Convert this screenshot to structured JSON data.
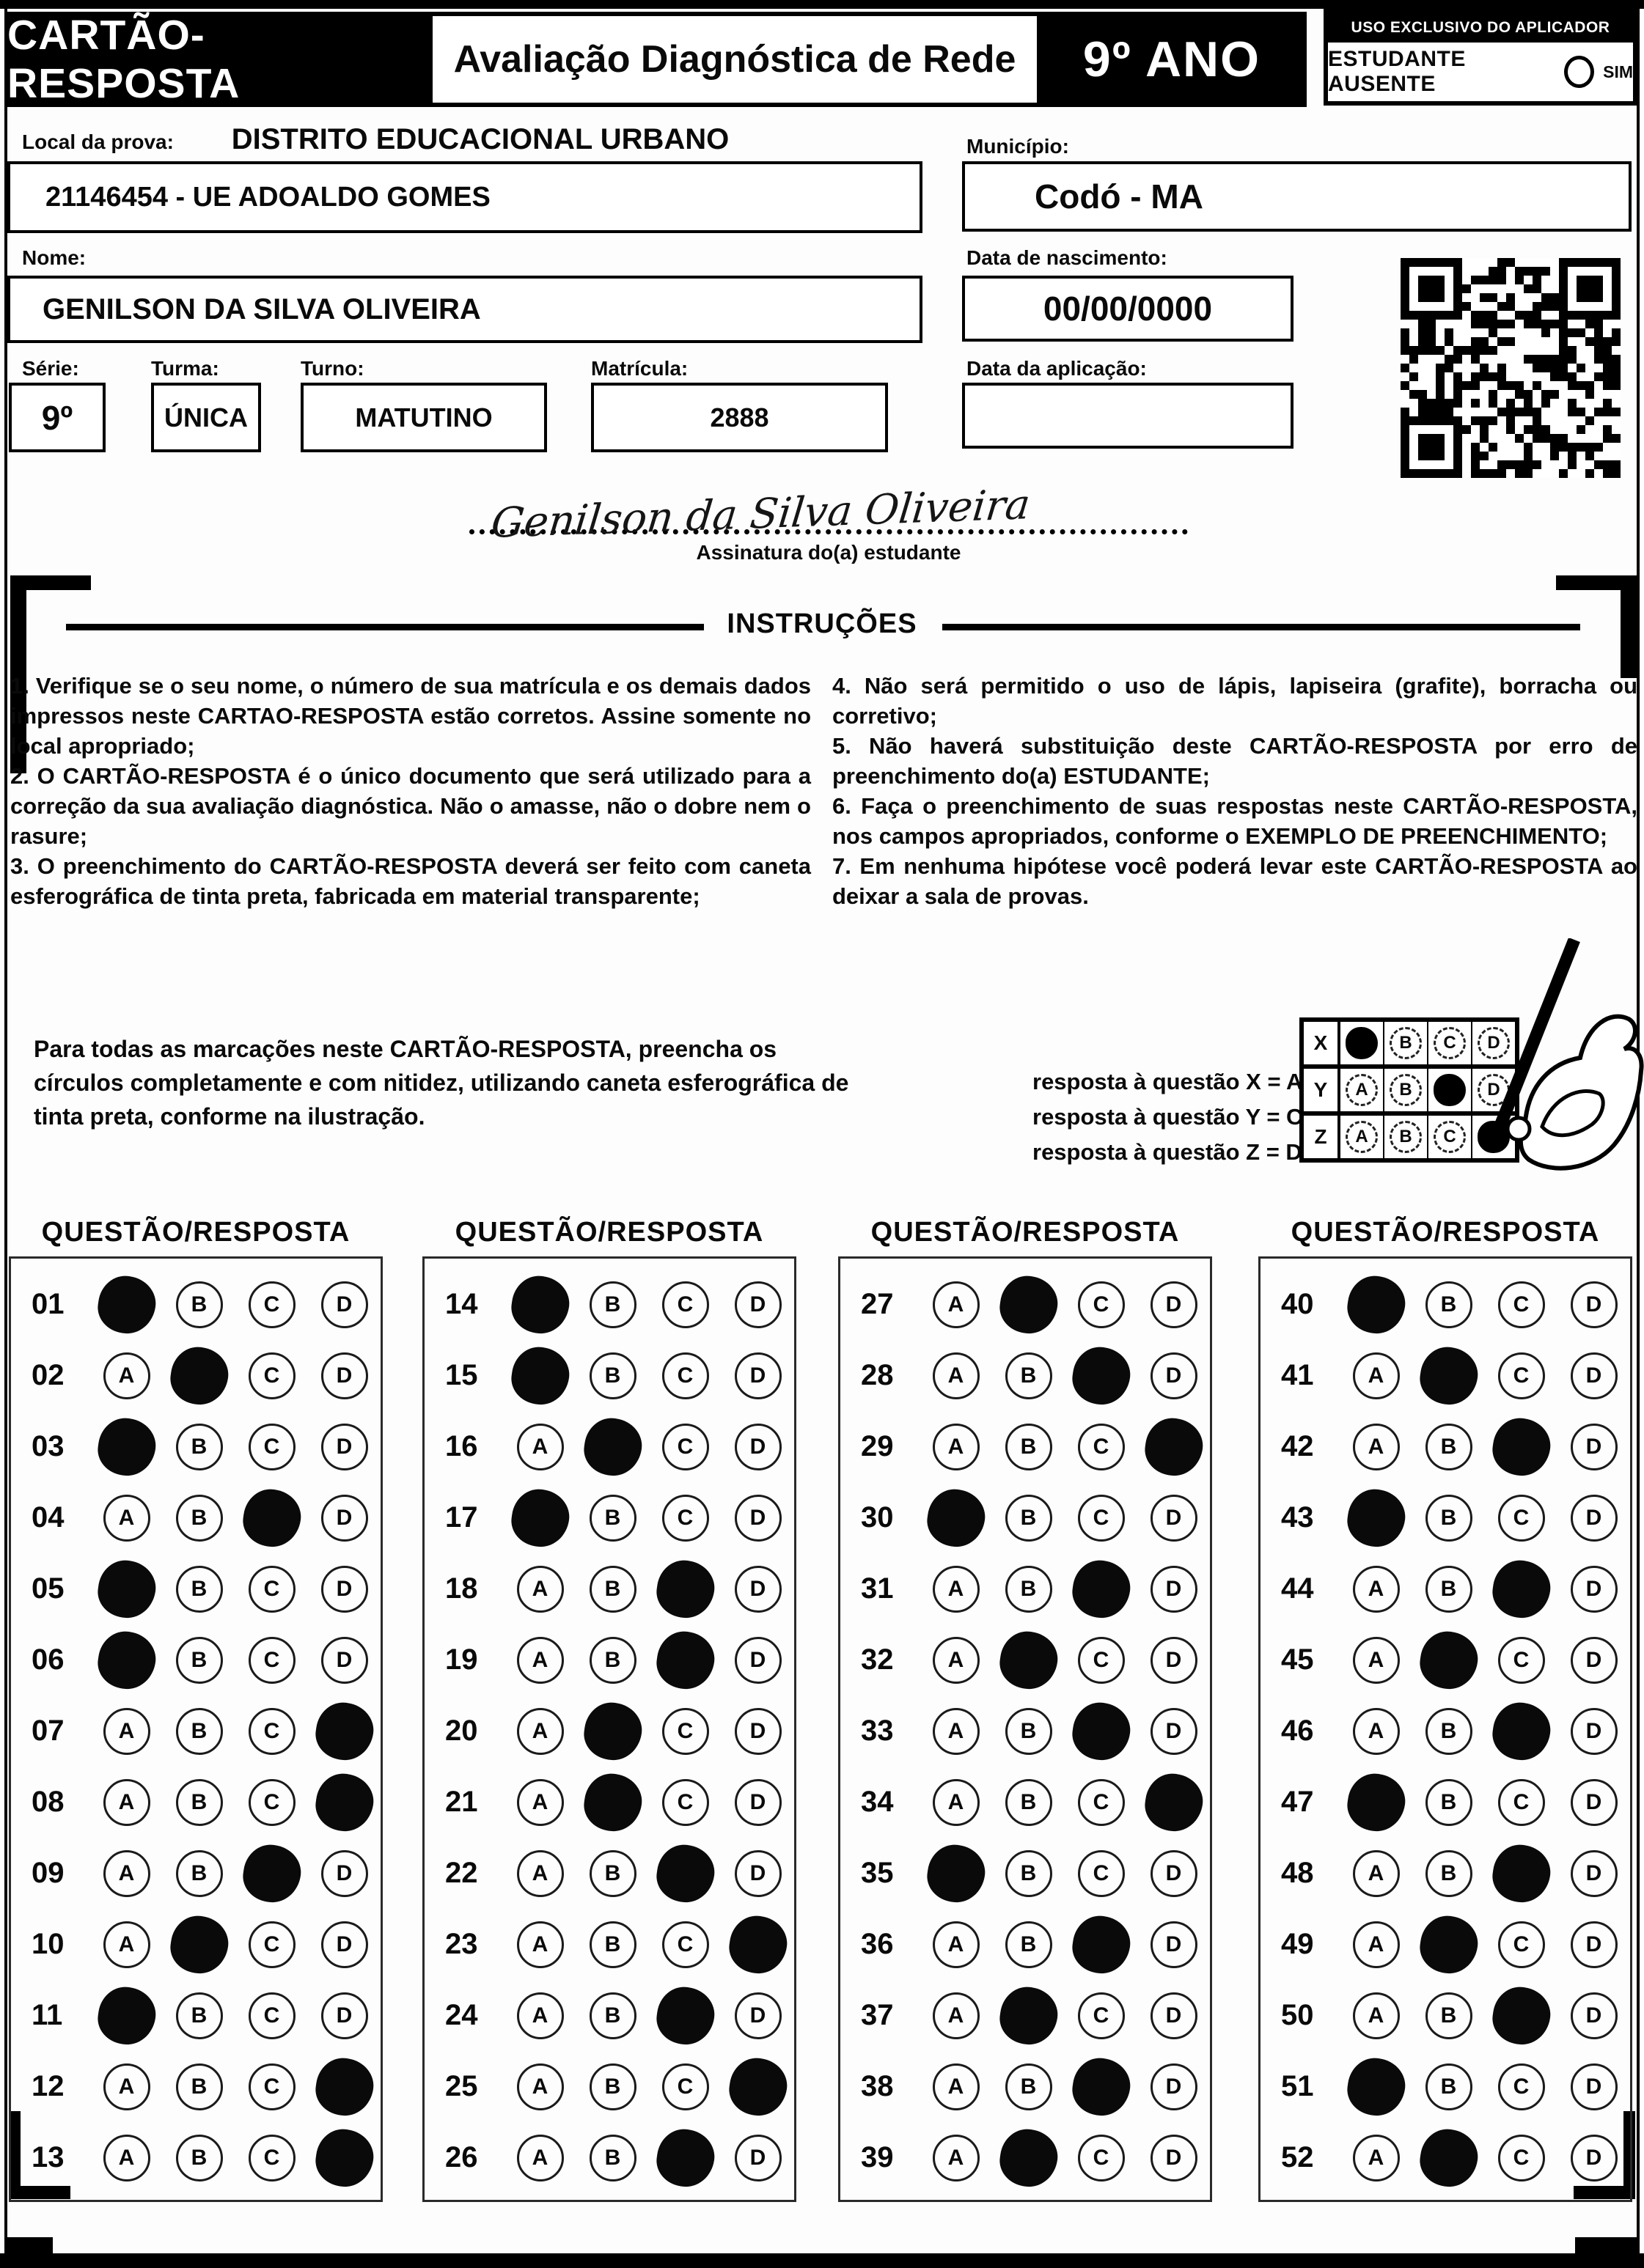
{
  "header": {
    "card_title": "CARTÃO-RESPOSTA",
    "exam_title": "Avaliação Diagnóstica de Rede",
    "grade": "9º ANO",
    "applicator_box_title": "USO EXCLUSIVO DO APLICADOR",
    "absent_label": "ESTUDANTE AUSENTE",
    "absent_option": "SIM"
  },
  "form": {
    "local_label": "Local da prova:",
    "district": "DISTRITO EDUCACIONAL URBANO",
    "school": "21146454 - UE ADOALDO GOMES",
    "municipio_label": "Município:",
    "municipio": "Codó - MA",
    "nome_label": "Nome:",
    "nome": "GENILSON DA SILVA OLIVEIRA",
    "nascimento_label": "Data de nascimento:",
    "nascimento": "00/00/0000",
    "serie_label": "Série:",
    "serie": "9º",
    "turma_label": "Turma:",
    "turma": "ÚNICA",
    "turno_label": "Turno:",
    "turno": "MATUTINO",
    "matricula_label": "Matrícula:",
    "matricula": "2888",
    "aplicacao_label": "Data da aplicação:",
    "aplicacao": "",
    "signature": "Genilson da Silva Oliveira",
    "signature_label": "Assinatura do(a) estudante"
  },
  "instructions": {
    "title": "INSTRUÇÕES",
    "left": [
      "1. Verifique se o seu nome, o número de sua matrícula e os demais dados impressos neste CARTAO-RESPOSTA estão corretos. Assine somente no local apropriado;",
      "2. O CARTÃO-RESPOSTA é o único documento que será utilizado para a correção da sua avaliação diagnóstica. Não o amasse, não o dobre nem o rasure;",
      "3. O preenchimento do CARTÃO-RESPOSTA deverá ser feito com caneta esferográfica de tinta preta, fabricada em material transparente;"
    ],
    "right": [
      "4. Não será permitido o uso de lápis, lapiseira (grafite), borracha ou corretivo;",
      "5. Não haverá substituição deste CARTÃO-RESPOSTA por erro de preenchimento do(a) ESTUDANTE;",
      "6. Faça o preenchimento de suas respostas neste CARTÃO-RESPOSTA, nos campos apropriados, conforme o EXEMPLO DE PREENCHIMENTO;",
      "7. Em nenhuma hipótese você poderá levar este CARTÃO-RESPOSTA ao deixar a sala de provas."
    ],
    "fill_note": "Para todas as marcações neste CARTÃO-RESPOSTA, preencha os círculos completamente e com nitidez, utilizando caneta esferográfica de tinta preta, conforme na ilustração.",
    "example_caption": [
      "resposta à questão X = A",
      "resposta à questão Y = C",
      "resposta à questão Z = D"
    ],
    "example_rows": [
      {
        "label": "X",
        "marked": "A"
      },
      {
        "label": "Y",
        "marked": "C"
      },
      {
        "label": "Z",
        "marked": "D"
      }
    ]
  },
  "answer_sheet": {
    "column_header": "QUESTÃO/RESPOSTA",
    "options": [
      "A",
      "B",
      "C",
      "D"
    ],
    "columns": [
      {
        "start": 1,
        "answers": [
          "A",
          "B",
          "A",
          "C",
          "A",
          "A",
          "D",
          "D",
          "C",
          "B",
          "A",
          "D",
          "D"
        ]
      },
      {
        "start": 14,
        "answers": [
          "A",
          "A",
          "B",
          "A",
          "C",
          "C",
          "B",
          "B",
          "C",
          "D",
          "C",
          "D",
          "C"
        ]
      },
      {
        "start": 27,
        "answers": [
          "B",
          "C",
          "D",
          "A",
          "C",
          "B",
          "C",
          "D",
          "A",
          "C",
          "B",
          "C",
          "B"
        ]
      },
      {
        "start": 40,
        "answers": [
          "A",
          "B",
          "C",
          "A",
          "C",
          "B",
          "C",
          "A",
          "C",
          "B",
          "C",
          "A",
          "B"
        ]
      }
    ]
  },
  "colors": {
    "ink": "#000000",
    "paper": "#fdfdfd"
  }
}
